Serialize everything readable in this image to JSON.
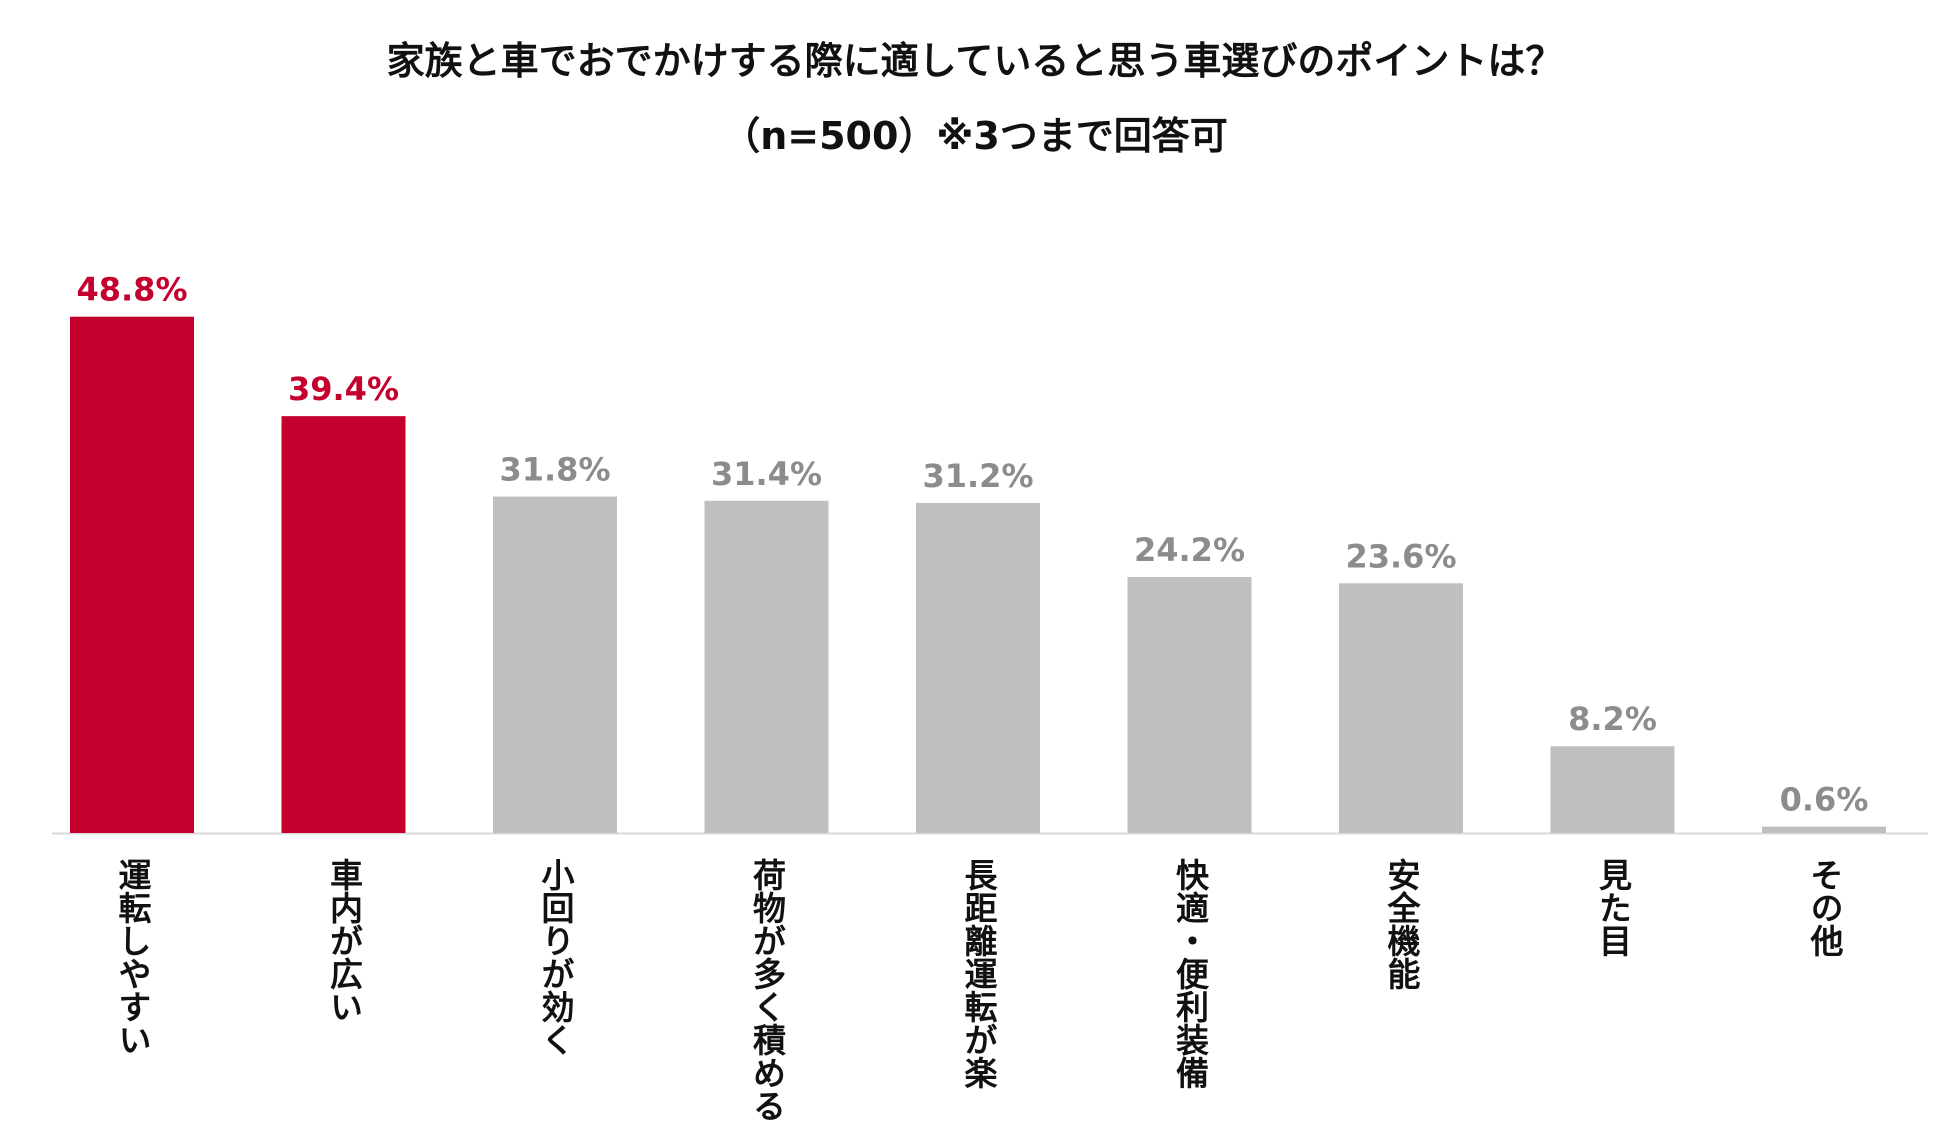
{
  "title_line1": "家族と車でおでかけする際に適していると思う車選びのポイントは？",
  "title_line2": "（n=500）※3つまで回答可",
  "colors": {
    "highlight": "#C4002F",
    "normal": "#BFBFBF",
    "normal_label": "#8C8C8C",
    "axis": "#D9D9D9"
  },
  "chart_data": {
    "type": "bar",
    "title": "家族と車でおでかけする際に適していると思う車選びのポイントは？ （n=500）※3つまで回答可",
    "categories": [
      "運転しやすい",
      "車内が広い",
      "小回りが効く",
      "荷物が多く積める",
      "長距離運転が楽",
      "快適・便利装備",
      "安全機能",
      "見た目",
      "その他"
    ],
    "values": [
      48.8,
      39.4,
      31.8,
      31.4,
      31.2,
      24.2,
      23.6,
      8.2,
      0.6
    ],
    "value_labels": [
      "48.8%",
      "39.4%",
      "31.8%",
      "31.4%",
      "31.2%",
      "24.2%",
      "23.6%",
      "8.2%",
      "0.6%"
    ],
    "highlighted": [
      true,
      true,
      false,
      false,
      false,
      false,
      false,
      false,
      false
    ],
    "unit": "%",
    "ylim": [
      0,
      50
    ],
    "grid": false,
    "legend": "none"
  }
}
